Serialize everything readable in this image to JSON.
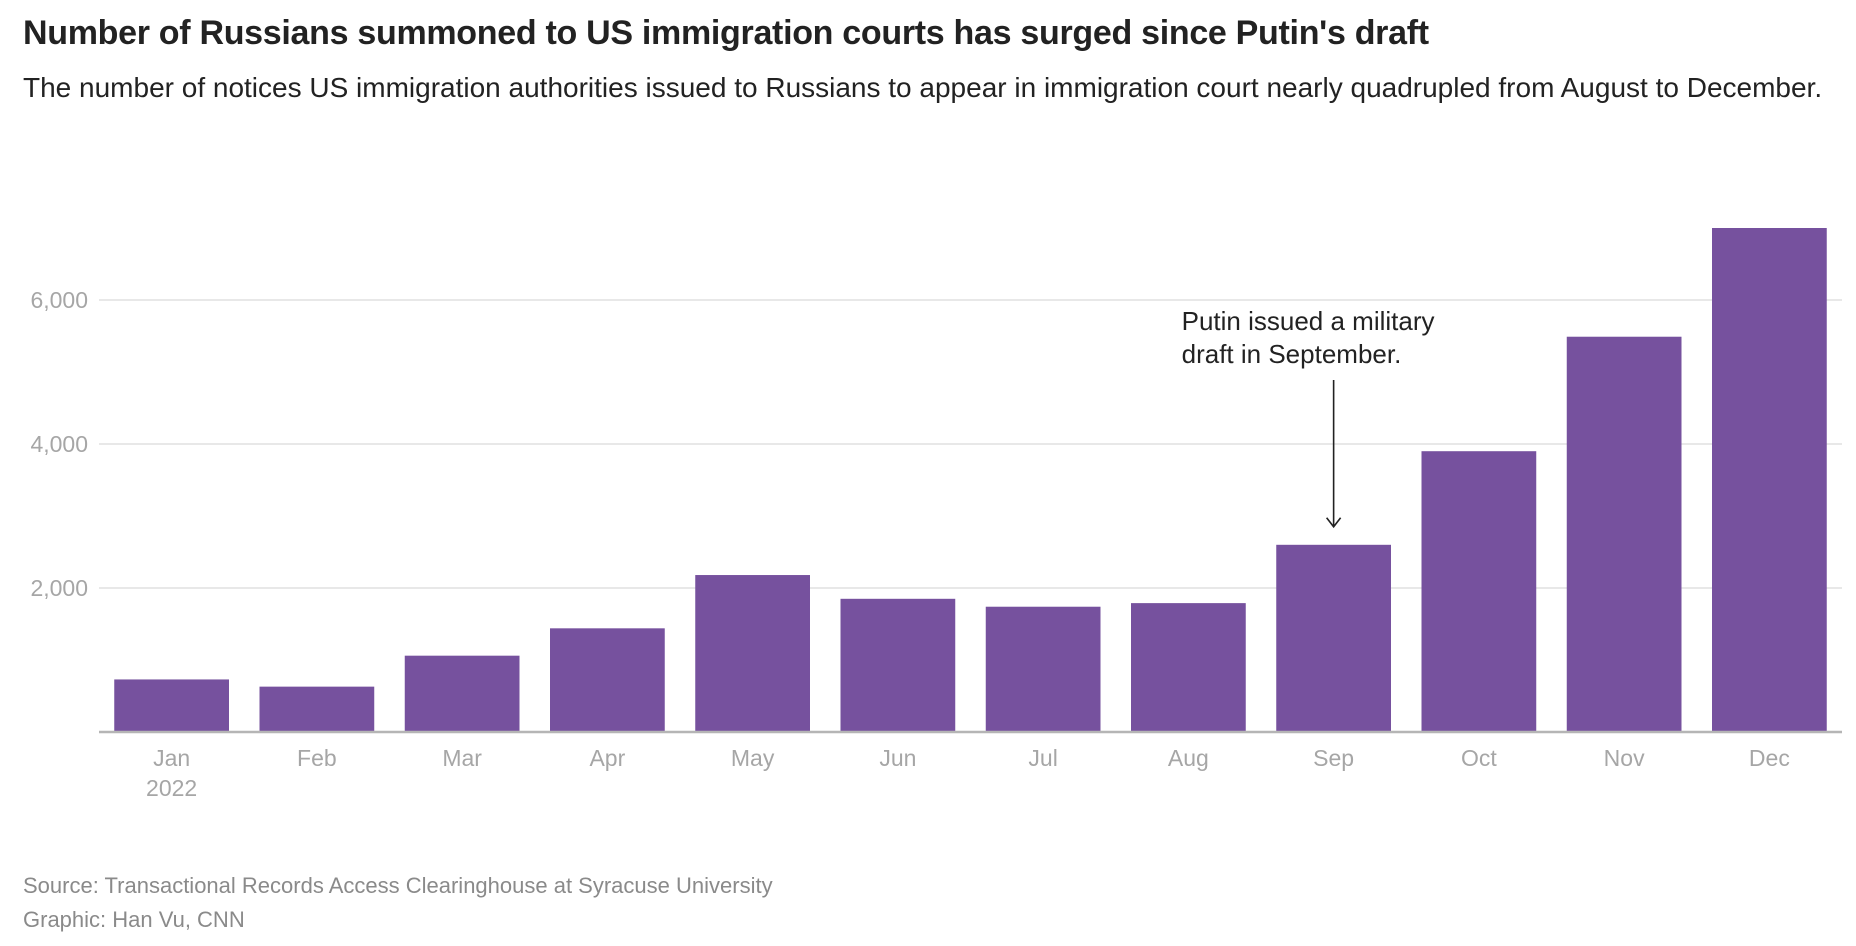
{
  "header": {
    "title": "Number of Russians summoned to US immigration courts has surged since Putin's draft",
    "subtitle": "The number of notices US immigration authorities issued to Russians to appear in immigration court nearly quadrupled from August to December."
  },
  "chart_data": {
    "type": "bar",
    "title": "Number of Russians summoned to US immigration courts has surged since Putin's draft",
    "xlabel": "",
    "ylabel": "",
    "categories": [
      "Jan",
      "Feb",
      "Mar",
      "Apr",
      "May",
      "Jun",
      "Jul",
      "Aug",
      "Sep",
      "Oct",
      "Nov",
      "Dec"
    ],
    "year_label": "2022",
    "values": [
      730,
      630,
      1060,
      1440,
      2180,
      1850,
      1740,
      1790,
      2600,
      3900,
      5490,
      7000
    ],
    "ylim": [
      0,
      7000
    ],
    "yticks": [
      2000,
      4000,
      6000
    ],
    "ytick_labels": [
      "2,000",
      "4,000",
      "6,000"
    ],
    "grid": true,
    "bar_color": "#76519e",
    "annotation": {
      "category": "Sep",
      "lines": [
        "Putin issued a military",
        "draft in September."
      ]
    }
  },
  "footer": {
    "source": "Source: Transactional Records Access Clearinghouse at Syracuse University",
    "credit": "Graphic: Han Vu, CNN"
  }
}
